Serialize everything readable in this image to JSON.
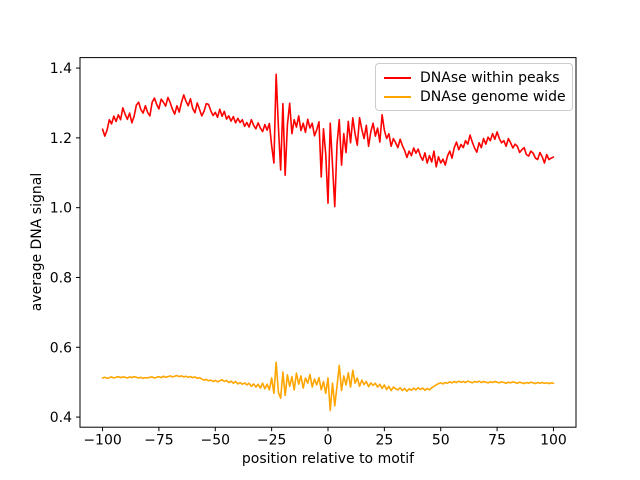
{
  "figure": {
    "background": "#ffffff",
    "axes_edge_color": "#000000",
    "legend_border_color": "#cccccc"
  },
  "chart_data": {
    "type": "line",
    "title": "",
    "xlabel": "position relative to motif",
    "ylabel": "average DNA signal",
    "grid": false,
    "legend_position": "upper right",
    "xlim": [
      -110,
      110
    ],
    "ylim": [
      0.371,
      1.43
    ],
    "xticks": [
      -100,
      -75,
      -50,
      -25,
      0,
      25,
      50,
      75,
      100
    ],
    "xticklabels": [
      "−100",
      "−75",
      "−50",
      "−25",
      "0",
      "25",
      "50",
      "75",
      "100"
    ],
    "yticks": [
      0.4,
      0.6,
      0.8,
      1.0,
      1.2,
      1.4
    ],
    "yticklabels": [
      "0.4",
      "0.6",
      "0.8",
      "1.0",
      "1.2",
      "1.4"
    ],
    "x": [
      -100,
      -99,
      -98,
      -97,
      -96,
      -95,
      -94,
      -93,
      -92,
      -91,
      -90,
      -89,
      -88,
      -87,
      -86,
      -85,
      -84,
      -83,
      -82,
      -81,
      -80,
      -79,
      -78,
      -77,
      -76,
      -75,
      -74,
      -73,
      -72,
      -71,
      -70,
      -69,
      -68,
      -67,
      -66,
      -65,
      -64,
      -63,
      -62,
      -61,
      -60,
      -59,
      -58,
      -57,
      -56,
      -55,
      -54,
      -53,
      -52,
      -51,
      -50,
      -49,
      -48,
      -47,
      -46,
      -45,
      -44,
      -43,
      -42,
      -41,
      -40,
      -39,
      -38,
      -37,
      -36,
      -35,
      -34,
      -33,
      -32,
      -31,
      -30,
      -29,
      -28,
      -27,
      -26,
      -25,
      -24,
      -23,
      -22,
      -21,
      -20,
      -19,
      -18,
      -17,
      -16,
      -15,
      -14,
      -13,
      -12,
      -11,
      -10,
      -9,
      -8,
      -7,
      -6,
      -5,
      -4,
      -3,
      -2,
      -1,
      0,
      1,
      2,
      3,
      4,
      5,
      6,
      7,
      8,
      9,
      10,
      11,
      12,
      13,
      14,
      15,
      16,
      17,
      18,
      19,
      20,
      21,
      22,
      23,
      24,
      25,
      26,
      27,
      28,
      29,
      30,
      31,
      32,
      33,
      34,
      35,
      36,
      37,
      38,
      39,
      40,
      41,
      42,
      43,
      44,
      45,
      46,
      47,
      48,
      49,
      50,
      51,
      52,
      53,
      54,
      55,
      56,
      57,
      58,
      59,
      60,
      61,
      62,
      63,
      64,
      65,
      66,
      67,
      68,
      69,
      70,
      71,
      72,
      73,
      74,
      75,
      76,
      77,
      78,
      79,
      80,
      81,
      82,
      83,
      84,
      85,
      86,
      87,
      88,
      89,
      90,
      91,
      92,
      93,
      94,
      95,
      96,
      97,
      98,
      99,
      100
    ],
    "series": [
      {
        "name": "DNAse within peaks",
        "color": "#ff0000",
        "values": [
          1.225,
          1.205,
          1.222,
          1.252,
          1.24,
          1.262,
          1.247,
          1.266,
          1.252,
          1.286,
          1.268,
          1.253,
          1.271,
          1.243,
          1.262,
          1.294,
          1.302,
          1.281,
          1.271,
          1.292,
          1.273,
          1.263,
          1.302,
          1.314,
          1.296,
          1.283,
          1.311,
          1.302,
          1.291,
          1.316,
          1.301,
          1.282,
          1.268,
          1.292,
          1.274,
          1.301,
          1.323,
          1.305,
          1.292,
          1.312,
          1.284,
          1.272,
          1.3,
          1.282,
          1.263,
          1.276,
          1.298,
          1.296,
          1.278,
          1.264,
          1.273,
          1.259,
          1.282,
          1.262,
          1.276,
          1.254,
          1.263,
          1.248,
          1.261,
          1.243,
          1.256,
          1.244,
          1.252,
          1.233,
          1.244,
          1.231,
          1.252,
          1.236,
          1.226,
          1.243,
          1.228,
          1.218,
          1.238,
          1.222,
          1.241,
          1.178,
          1.128,
          1.382,
          1.232,
          1.108,
          1.298,
          1.093,
          1.238,
          1.299,
          1.212,
          1.252,
          1.231,
          1.263,
          1.221,
          1.242,
          1.216,
          1.253,
          1.228,
          1.242,
          1.206,
          1.223,
          1.246,
          1.088,
          1.226,
          1.153,
          1.013,
          1.242,
          1.121,
          1.003,
          1.182,
          1.252,
          1.122,
          1.212,
          1.158,
          1.247,
          1.186,
          1.257,
          1.212,
          1.179,
          1.258,
          1.224,
          1.198,
          1.236,
          1.176,
          1.218,
          1.242,
          1.205,
          1.228,
          1.188,
          1.266,
          1.222,
          1.198,
          1.212,
          1.176,
          1.198,
          1.186,
          1.172,
          1.196,
          1.178,
          1.164,
          1.144,
          1.162,
          1.149,
          1.171,
          1.156,
          1.168,
          1.148,
          1.136,
          1.157,
          1.128,
          1.149,
          1.131,
          1.162,
          1.117,
          1.146,
          1.128,
          1.139,
          1.122,
          1.148,
          1.162,
          1.142,
          1.172,
          1.188,
          1.166,
          1.181,
          1.172,
          1.192,
          1.182,
          1.208,
          1.188,
          1.171,
          1.159,
          1.186,
          1.172,
          1.198,
          1.182,
          1.202,
          1.192,
          1.212,
          1.196,
          1.217,
          1.198,
          1.186,
          1.192,
          1.176,
          1.198,
          1.186,
          1.171,
          1.182,
          1.176,
          1.158,
          1.166,
          1.172,
          1.152,
          1.148,
          1.162,
          1.156,
          1.142,
          1.138,
          1.158,
          1.146,
          1.128,
          1.152,
          1.138,
          1.142,
          1.145
        ]
      },
      {
        "name": "DNAse genome wide",
        "color": "#ffa500",
        "values": [
          0.512,
          0.514,
          0.511,
          0.513,
          0.515,
          0.512,
          0.514,
          0.516,
          0.513,
          0.515,
          0.514,
          0.512,
          0.515,
          0.513,
          0.516,
          0.514,
          0.512,
          0.514,
          0.511,
          0.513,
          0.512,
          0.514,
          0.515,
          0.512,
          0.514,
          0.516,
          0.513,
          0.517,
          0.514,
          0.516,
          0.518,
          0.515,
          0.517,
          0.519,
          0.516,
          0.518,
          0.515,
          0.517,
          0.514,
          0.516,
          0.513,
          0.515,
          0.511,
          0.513,
          0.509,
          0.506,
          0.508,
          0.504,
          0.506,
          0.502,
          0.505,
          0.501,
          0.504,
          0.507,
          0.502,
          0.505,
          0.499,
          0.503,
          0.497,
          0.502,
          0.495,
          0.499,
          0.494,
          0.498,
          0.492,
          0.497,
          0.488,
          0.495,
          0.486,
          0.494,
          0.483,
          0.497,
          0.481,
          0.494,
          0.478,
          0.512,
          0.468,
          0.557,
          0.471,
          0.454,
          0.529,
          0.462,
          0.521,
          0.488,
          0.516,
          0.478,
          0.526,
          0.494,
          0.518,
          0.483,
          0.512,
          0.497,
          0.522,
          0.486,
          0.509,
          0.492,
          0.513,
          0.478,
          0.502,
          0.468,
          0.512,
          0.419,
          0.497,
          0.432,
          0.489,
          0.548,
          0.476,
          0.518,
          0.492,
          0.527,
          0.486,
          0.534,
          0.497,
          0.512,
          0.488,
          0.506,
          0.493,
          0.502,
          0.487,
          0.498,
          0.491,
          0.497,
          0.486,
          0.494,
          0.482,
          0.492,
          0.479,
          0.488,
          0.476,
          0.486,
          0.481,
          0.478,
          0.484,
          0.476,
          0.482,
          0.474,
          0.481,
          0.477,
          0.483,
          0.478,
          0.484,
          0.479,
          0.483,
          0.477,
          0.482,
          0.478,
          0.484,
          0.488,
          0.492,
          0.496,
          0.498,
          0.495,
          0.499,
          0.497,
          0.501,
          0.498,
          0.502,
          0.499,
          0.503,
          0.5,
          0.502,
          0.499,
          0.503,
          0.501,
          0.498,
          0.502,
          0.5,
          0.503,
          0.499,
          0.502,
          0.5,
          0.498,
          0.501,
          0.499,
          0.502,
          0.5,
          0.498,
          0.501,
          0.499,
          0.497,
          0.5,
          0.498,
          0.501,
          0.499,
          0.497,
          0.5,
          0.498,
          0.496,
          0.499,
          0.497,
          0.5,
          0.498,
          0.496,
          0.499,
          0.497,
          0.499,
          0.497,
          0.498,
          0.496,
          0.498,
          0.497
        ]
      }
    ]
  }
}
